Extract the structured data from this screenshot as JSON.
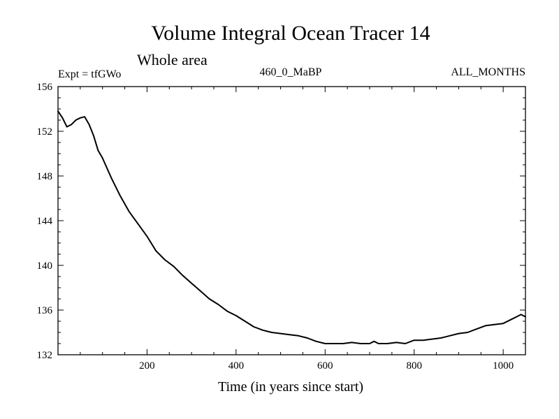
{
  "chart_data": {
    "type": "line",
    "title": "Volume Integral Ocean Tracer 14",
    "subtitle": "Whole area",
    "experiment_label": "Expt = tfGWo",
    "center_label": "460_0_MaBP",
    "right_label": "ALL_MONTHS",
    "xlabel": "Time (in years since start)",
    "ylabel": "",
    "xlim": [
      0,
      1050
    ],
    "ylim": [
      132,
      156
    ],
    "xticks": [
      200,
      400,
      600,
      800,
      1000
    ],
    "yticks": [
      132,
      136,
      140,
      144,
      148,
      152,
      156
    ],
    "series": [
      {
        "name": "Volume Integral Ocean Tracer 14",
        "x": [
          0,
          10,
          20,
          30,
          40,
          50,
          60,
          70,
          80,
          90,
          100,
          120,
          140,
          160,
          180,
          200,
          220,
          240,
          260,
          280,
          300,
          320,
          340,
          360,
          380,
          400,
          420,
          440,
          460,
          480,
          500,
          520,
          540,
          560,
          580,
          600,
          620,
          640,
          660,
          680,
          700,
          710,
          720,
          740,
          760,
          780,
          800,
          820,
          840,
          860,
          880,
          900,
          920,
          940,
          960,
          980,
          1000,
          1020,
          1030,
          1040,
          1050
        ],
        "y": [
          153.8,
          153.2,
          152.4,
          152.6,
          153.0,
          153.2,
          153.3,
          152.6,
          151.6,
          150.3,
          149.6,
          147.8,
          146.2,
          144.8,
          143.7,
          142.6,
          141.3,
          140.5,
          139.9,
          139.1,
          138.4,
          137.7,
          137.0,
          136.5,
          135.9,
          135.5,
          135.0,
          134.5,
          134.2,
          134.0,
          133.9,
          133.8,
          133.7,
          133.5,
          133.2,
          133.0,
          133.0,
          133.0,
          133.1,
          133.0,
          133.0,
          133.2,
          133.0,
          133.0,
          133.1,
          133.0,
          133.3,
          133.3,
          133.4,
          133.5,
          133.7,
          133.9,
          134.0,
          134.3,
          134.6,
          134.7,
          134.8,
          135.2,
          135.4,
          135.6,
          135.4
        ]
      }
    ]
  }
}
